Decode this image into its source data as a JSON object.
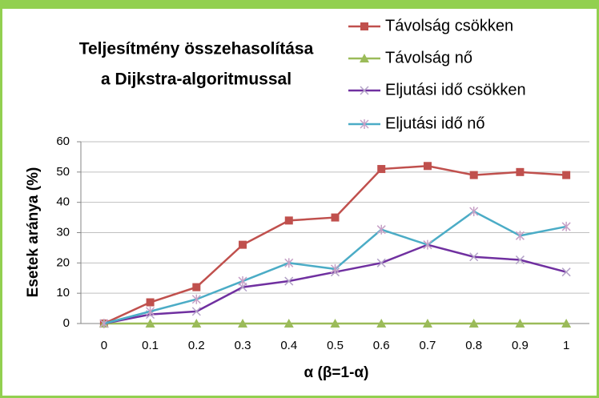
{
  "chart_data": {
    "type": "line",
    "title": [
      "Teljesítmény összehasolítása",
      "a Dijkstra-algoritmussal"
    ],
    "x_label": "α (β=1-α)",
    "y_label": "Esetek aránya (%)",
    "categories": [
      "0",
      "0.1",
      "0.2",
      "0.3",
      "0.4",
      "0.5",
      "0.6",
      "0.7",
      "0.8",
      "0.9",
      "1"
    ],
    "series": [
      {
        "name": "Távolság csökken",
        "color": "#c0504d",
        "marker": "square",
        "values": [
          0,
          7,
          12,
          26,
          34,
          35,
          51,
          52,
          49,
          50,
          49
        ]
      },
      {
        "name": "Távolság nő",
        "color": "#9bbb59",
        "marker": "triangle",
        "values": [
          0,
          0,
          0,
          0,
          0,
          0,
          0,
          0,
          0,
          0,
          0
        ]
      },
      {
        "name": "Eljutási idő csökken",
        "color": "#7030a0",
        "marker": "x",
        "values": [
          0,
          3,
          4,
          12,
          14,
          17,
          20,
          26,
          22,
          21,
          17
        ]
      },
      {
        "name": "Eljutási idő nő",
        "color": "#4bacc6",
        "marker": "star",
        "values": [
          0,
          4,
          8,
          14,
          20,
          18,
          31,
          26,
          37,
          29,
          32
        ]
      }
    ],
    "ylim": [
      0,
      60
    ],
    "yticks": [
      0,
      10,
      20,
      30,
      40,
      50,
      60
    ],
    "grid": true,
    "legend": "top-right"
  }
}
